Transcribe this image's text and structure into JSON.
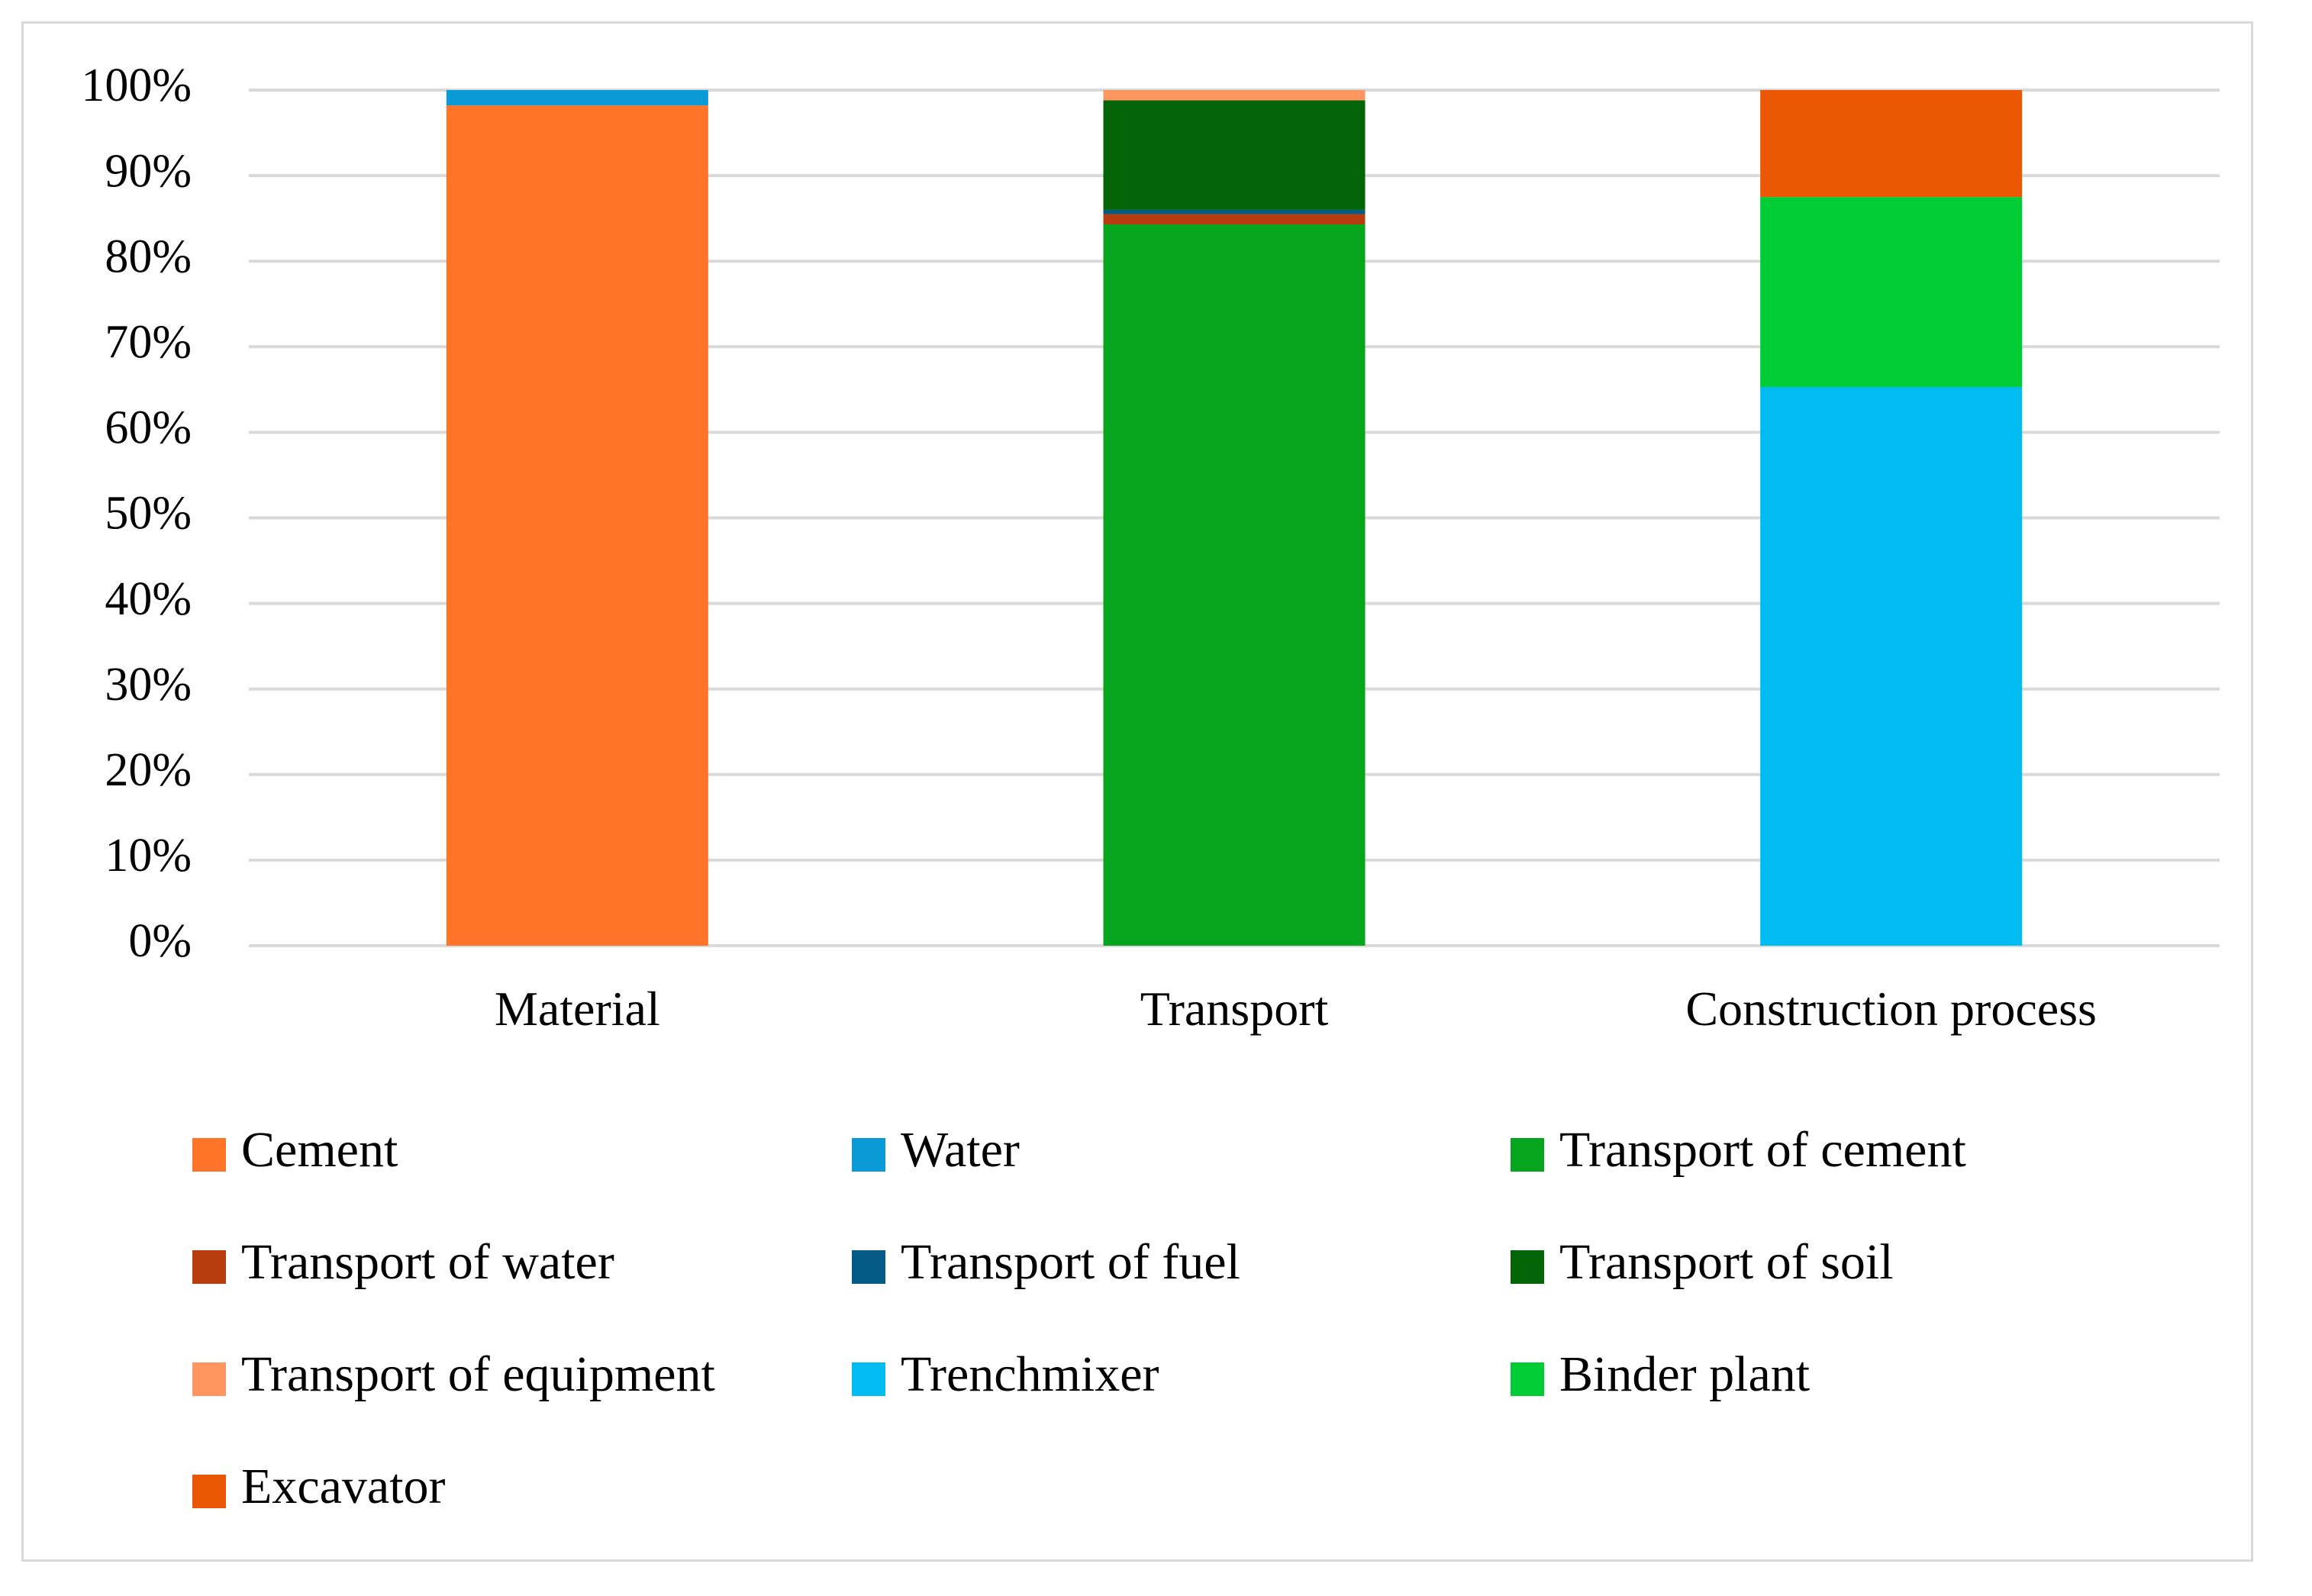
{
  "chart_data": {
    "type": "bar",
    "stacked": true,
    "percent": true,
    "categories": [
      "Material",
      "Transport",
      "Construction process"
    ],
    "ylim": [
      0,
      100
    ],
    "yticks": [
      0,
      10,
      20,
      30,
      40,
      50,
      60,
      70,
      80,
      90,
      100
    ],
    "ytick_labels": [
      "0%",
      "10%",
      "20%",
      "30%",
      "40%",
      "50%",
      "60%",
      "70%",
      "80%",
      "90%",
      "100%"
    ],
    "grid": true,
    "legend_position": "bottom",
    "series": [
      {
        "name": "Cement",
        "color": "#ff7428",
        "values": [
          98.2,
          0,
          0
        ]
      },
      {
        "name": "Water",
        "color": "#0a9bd6",
        "values": [
          1.8,
          0,
          0
        ]
      },
      {
        "name": "Transport of cement",
        "color": "#05a51e",
        "values": [
          0,
          84.3,
          0
        ]
      },
      {
        "name": "Transport of water",
        "color": "#b83d0e",
        "values": [
          0,
          1.2,
          0
        ]
      },
      {
        "name": "Transport of fuel",
        "color": "#045c86",
        "values": [
          0,
          0.5,
          0
        ]
      },
      {
        "name": "Transport of soil",
        "color": "#036508",
        "values": [
          0,
          12.8,
          0
        ]
      },
      {
        "name": "Transport of equipment",
        "color": "#ff9660",
        "values": [
          0,
          1.2,
          0
        ]
      },
      {
        "name": "Trenchmixer",
        "color": "#00bcf0",
        "values": [
          0,
          0,
          65.3
        ]
      },
      {
        "name": "Binder plant",
        "color": "#00cc36",
        "values": [
          0,
          0,
          22.2
        ]
      },
      {
        "name": "Excavator",
        "color": "#ea5806",
        "values": [
          0,
          0,
          12.5
        ]
      }
    ]
  }
}
